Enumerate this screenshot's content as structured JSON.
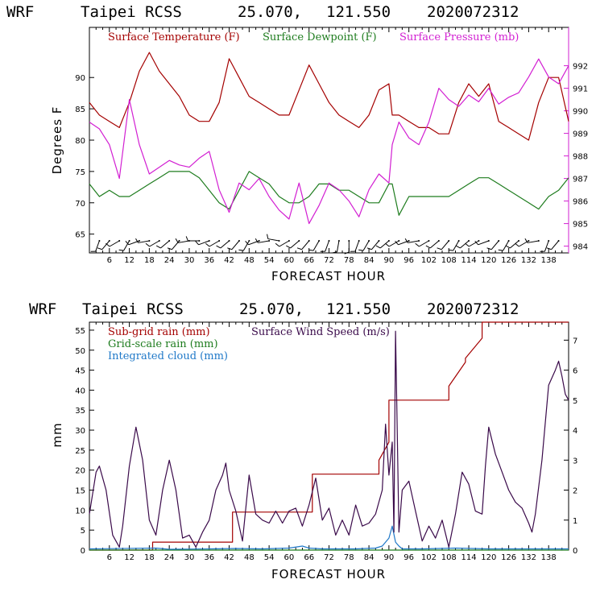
{
  "colors": {
    "temperature": "#a40000",
    "dewpoint": "#1e7c1e",
    "pressure": "#d21fd2",
    "subgrid_rain": "#a40000",
    "gridscale_rain": "#1e7c1e",
    "cloud": "#1f78c8",
    "wind_speed": "#3a0a4a",
    "barbs": "#000000"
  },
  "chart_data": [
    {
      "type": "line",
      "header": {
        "model": "WRF",
        "station": "Taipei RCSS",
        "lat": "25.070,",
        "lon": "121.550",
        "init": "2020072312"
      },
      "xlabel": "FORECAST HOUR",
      "ylabel": "Degrees F",
      "xlim": [
        0,
        144
      ],
      "xticks": [
        6,
        12,
        18,
        24,
        30,
        36,
        42,
        48,
        54,
        60,
        66,
        72,
        78,
        84,
        90,
        96,
        102,
        108,
        114,
        120,
        126,
        132,
        138
      ],
      "ylim": [
        62,
        98
      ],
      "yticks": [
        65,
        70,
        75,
        80,
        85,
        90
      ],
      "y2lim": [
        983.7,
        993.7
      ],
      "y2ticks": [
        984,
        985,
        986,
        987,
        988,
        989,
        990,
        991,
        992
      ],
      "series": [
        {
          "name": "Surface Temperature (F)",
          "axis": "left",
          "color_key": "temperature",
          "x": [
            0,
            3,
            6,
            9,
            12,
            15,
            18,
            21,
            24,
            27,
            30,
            33,
            36,
            39,
            42,
            45,
            48,
            51,
            54,
            57,
            60,
            63,
            66,
            69,
            72,
            75,
            78,
            81,
            84,
            87,
            90,
            91,
            93,
            96,
            99,
            102,
            105,
            108,
            111,
            114,
            117,
            120,
            123,
            126,
            129,
            132,
            135,
            138,
            141,
            144
          ],
          "y": [
            86,
            84,
            83,
            82,
            86,
            91,
            94,
            91,
            89,
            87,
            84,
            83,
            83,
            86,
            93,
            90,
            87,
            86,
            85,
            84,
            84,
            88,
            92,
            89,
            86,
            84,
            83,
            82,
            84,
            88,
            89,
            84,
            84,
            83,
            82,
            82,
            81,
            81,
            86,
            89,
            87,
            89,
            83,
            82,
            81,
            80,
            86,
            90,
            90,
            83
          ]
        },
        {
          "name": "Surface Dewpoint (F)",
          "axis": "left",
          "color_key": "dewpoint",
          "x": [
            0,
            3,
            6,
            9,
            12,
            15,
            18,
            21,
            24,
            27,
            30,
            33,
            36,
            39,
            42,
            45,
            48,
            51,
            54,
            57,
            60,
            63,
            66,
            69,
            72,
            75,
            78,
            81,
            84,
            87,
            90,
            91,
            93,
            96,
            99,
            102,
            105,
            108,
            111,
            114,
            117,
            120,
            123,
            126,
            129,
            132,
            135,
            138,
            141,
            144
          ],
          "y": [
            73,
            71,
            72,
            71,
            71,
            72,
            73,
            74,
            75,
            75,
            75,
            74,
            72,
            70,
            69,
            72,
            75,
            74,
            73,
            71,
            70,
            70,
            71,
            73,
            73,
            72,
            72,
            71,
            70,
            70,
            73,
            73,
            68,
            71,
            71,
            71,
            71,
            71,
            72,
            73,
            74,
            74,
            73,
            72,
            71,
            70,
            69,
            71,
            72,
            74
          ]
        },
        {
          "name": "Surface Pressure (mb)",
          "axis": "right",
          "color_key": "pressure",
          "x": [
            0,
            3,
            6,
            9,
            12,
            15,
            18,
            21,
            24,
            27,
            30,
            33,
            36,
            39,
            42,
            45,
            48,
            51,
            54,
            57,
            60,
            63,
            66,
            69,
            72,
            75,
            78,
            81,
            84,
            87,
            90,
            91,
            93,
            96,
            99,
            102,
            105,
            108,
            111,
            114,
            117,
            120,
            123,
            126,
            129,
            132,
            135,
            138,
            141,
            144
          ],
          "y": [
            989.5,
            989.2,
            988.5,
            987,
            990.5,
            988.5,
            987.2,
            987.5,
            987.8,
            987.6,
            987.5,
            987.9,
            988.2,
            986.5,
            985.5,
            986.8,
            986.5,
            987,
            986.2,
            985.6,
            985.2,
            986.8,
            985,
            985.8,
            986.8,
            986.5,
            986,
            985.3,
            986.5,
            987.2,
            986.8,
            988.5,
            989.5,
            988.8,
            988.5,
            989.5,
            991,
            990.5,
            990.2,
            990.7,
            990.4,
            991,
            990.3,
            990.6,
            990.8,
            991.5,
            992.3,
            991.5,
            991.2,
            992
          ]
        }
      ],
      "wind_barbs": "row of wind barbs along the bottom of the panel"
    },
    {
      "type": "line",
      "header": {
        "model": "WRF",
        "station": "Taipei RCSS",
        "lat": "25.070,",
        "lon": "121.550",
        "init": "2020072312"
      },
      "xlabel": "FORECAST HOUR",
      "ylabel": "mm",
      "xlim": [
        0,
        144
      ],
      "xticks": [
        6,
        12,
        18,
        24,
        30,
        36,
        42,
        48,
        54,
        60,
        66,
        72,
        78,
        84,
        90,
        96,
        102,
        108,
        114,
        120,
        126,
        132,
        138
      ],
      "ylim": [
        0,
        57
      ],
      "yticks": [
        0,
        5,
        10,
        15,
        20,
        25,
        30,
        35,
        40,
        45,
        50,
        55
      ],
      "y2lim": [
        0,
        7.6
      ],
      "y2ticks": [
        0,
        1,
        2,
        3,
        4,
        5,
        6,
        7
      ],
      "series": [
        {
          "name": "Sub-grid rain (mm)",
          "axis": "left",
          "color_key": "subgrid_rain",
          "x": [
            0,
            19,
            19,
            43,
            43,
            67,
            67,
            87,
            87,
            90,
            90,
            108,
            108,
            113,
            113,
            118,
            118,
            144
          ],
          "y": [
            0,
            0,
            2,
            2,
            9.5,
            9.5,
            19,
            19,
            22.5,
            27,
            37.5,
            37.5,
            41,
            47,
            48,
            53,
            57,
            57
          ]
        },
        {
          "name": "Grid-scale rain (mm)",
          "axis": "left",
          "color_key": "gridscale_rain",
          "x": [
            0,
            144
          ],
          "y": [
            0,
            0
          ]
        },
        {
          "name": "Integrated cloud (mm)",
          "axis": "left",
          "color_key": "cloud",
          "x": [
            0,
            20,
            24,
            36,
            44,
            52,
            60,
            64,
            66,
            70,
            80,
            86,
            88,
            90,
            91,
            92,
            93,
            94,
            100,
            110,
            120,
            130,
            144
          ],
          "y": [
            0.3,
            0.5,
            0.2,
            0.3,
            0.4,
            0.3,
            0.5,
            1,
            0.5,
            0.3,
            0.3,
            0.5,
            1,
            3,
            6,
            2,
            1,
            0.3,
            0.3,
            0.5,
            0.3,
            0.3,
            0.3
          ]
        },
        {
          "name": "Surface Wind Speed (m/s)",
          "axis": "right",
          "color_key": "wind_speed",
          "x": [
            0,
            2,
            3,
            5,
            7,
            9,
            10,
            12,
            14,
            16,
            18,
            20,
            22,
            24,
            26,
            28,
            30,
            32,
            34,
            36,
            38,
            40,
            41,
            42,
            44,
            46,
            48,
            50,
            52,
            54,
            56,
            58,
            60,
            62,
            64,
            66,
            68,
            70,
            72,
            74,
            76,
            78,
            80,
            82,
            84,
            86,
            88,
            89,
            90,
            91,
            91.5,
            92,
            92.5,
            93,
            94,
            96,
            98,
            100,
            102,
            104,
            106,
            108,
            110,
            112,
            114,
            116,
            118,
            119,
            120,
            122,
            124,
            126,
            128,
            130,
            132,
            133,
            134,
            136,
            138,
            140,
            141,
            142,
            143,
            144
          ],
          "y": [
            1.2,
            2.6,
            2.8,
            2.0,
            0.5,
            0.1,
            0.8,
            2.8,
            4.1,
            3.0,
            1.0,
            0.5,
            2.0,
            3.0,
            2.0,
            0.4,
            0.5,
            0.1,
            0.6,
            1.0,
            2.0,
            2.5,
            2.9,
            2.0,
            1.3,
            0.3,
            2.5,
            1.2,
            1.0,
            0.9,
            1.3,
            0.9,
            1.3,
            1.4,
            0.8,
            1.5,
            2.4,
            1.0,
            1.4,
            0.5,
            1.0,
            0.5,
            1.5,
            0.8,
            0.9,
            1.2,
            2.0,
            4.2,
            2.5,
            3.6,
            0.6,
            7.3,
            4.0,
            0.6,
            2.0,
            2.3,
            1.3,
            0.3,
            0.8,
            0.4,
            1.0,
            0.1,
            1.2,
            2.6,
            2.2,
            1.3,
            1.2,
            2.8,
            4.1,
            3.2,
            2.6,
            2.0,
            1.6,
            1.4,
            0.9,
            0.6,
            1.2,
            3.0,
            5.5,
            6.0,
            6.3,
            5.8,
            5.2,
            5.0
          ]
        }
      ]
    }
  ]
}
